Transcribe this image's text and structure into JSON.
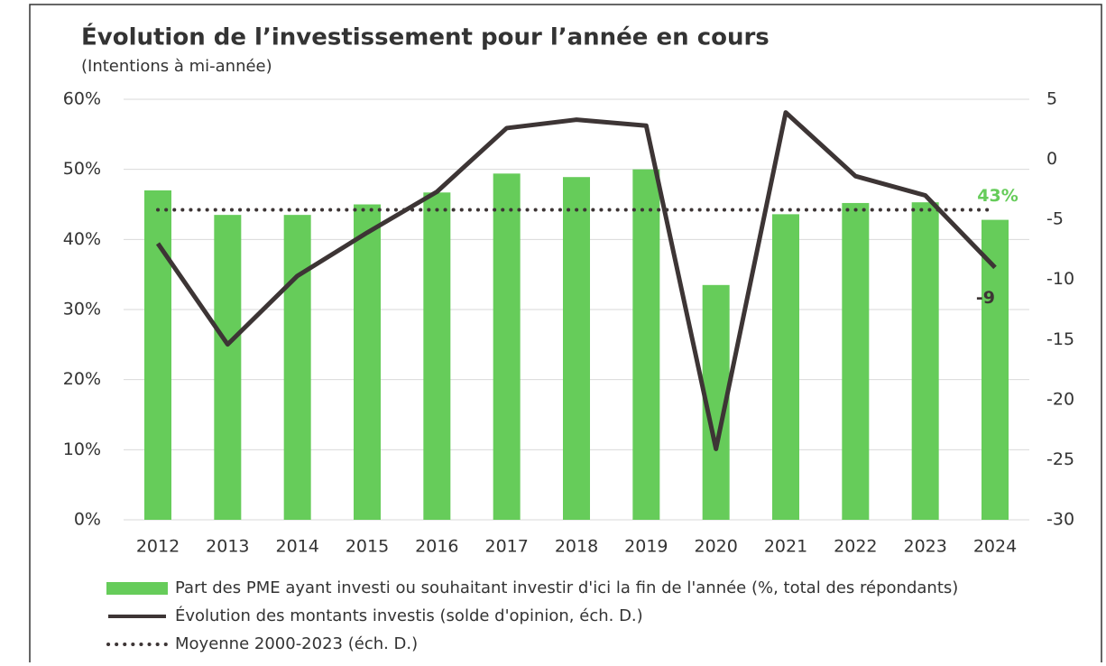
{
  "chart_data": {
    "type": "bar-line",
    "title": "Évolution de l’investissement pour l’année en cours",
    "subtitle": "(Intentions à mi-année)",
    "categories": [
      "2012",
      "2013",
      "2014",
      "2015",
      "2016",
      "2017",
      "2018",
      "2019",
      "2020",
      "2021",
      "2022",
      "2023",
      "2024"
    ],
    "series": [
      {
        "name": "Part des PME ayant investi ou souhaitant investir d'ici la fin de l'année (%, total des répondants)",
        "type": "bar",
        "color": "#66cc5a",
        "values": [
          47,
          43.5,
          43.5,
          45,
          46.7,
          49.4,
          48.9,
          50,
          33.5,
          43.6,
          45.2,
          45.3,
          42.8
        ],
        "value_labels": [
          null,
          null,
          null,
          null,
          null,
          null,
          null,
          null,
          null,
          null,
          null,
          null,
          "43%"
        ]
      },
      {
        "name": "Évolution des montants investis (solde d'opinion, éch. D.)",
        "type": "line",
        "axis": "y2",
        "color": "#3d3535",
        "values": [
          -7.0,
          -15.4,
          -9.7,
          -6.1,
          -2.7,
          2.6,
          3.3,
          2.8,
          -24.1,
          3.9,
          -1.4,
          -3.0,
          -9
        ],
        "value_labels": [
          null,
          null,
          null,
          null,
          null,
          null,
          null,
          null,
          null,
          null,
          null,
          null,
          "-9"
        ]
      },
      {
        "name": "Moyenne 2000-2023 (éch. D.)",
        "type": "dotted",
        "axis": "y2",
        "color": "#3d3535",
        "values": [
          -4.2,
          -4.2,
          -4.2,
          -4.2,
          -4.2,
          -4.2,
          -4.2,
          -4.2,
          -4.2,
          -4.2,
          -4.2,
          -4.2,
          -4.2
        ]
      }
    ],
    "ylim": [
      0,
      60
    ],
    "yticks": [
      {
        "value": 0,
        "label": "0%"
      },
      {
        "value": 10,
        "label": "10%"
      },
      {
        "value": 20,
        "label": "20%"
      },
      {
        "value": 30,
        "label": "30%"
      },
      {
        "value": 40,
        "label": "40%"
      },
      {
        "value": 50,
        "label": "50%"
      },
      {
        "value": 60,
        "label": "60%"
      }
    ],
    "y2lim": [
      -30,
      5
    ],
    "y2ticks": [
      -30,
      -25,
      -20,
      -15,
      -10,
      -5,
      0,
      5
    ],
    "grid": true
  }
}
